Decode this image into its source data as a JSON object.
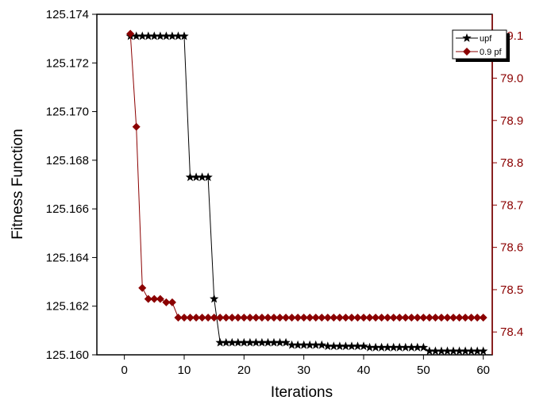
{
  "chart_data": {
    "type": "line",
    "x_label": "Iterations",
    "y_label": "Fitness Function",
    "x": [
      1,
      2,
      3,
      4,
      5,
      6,
      7,
      8,
      9,
      10,
      11,
      12,
      13,
      14,
      15,
      16,
      17,
      18,
      19,
      20,
      21,
      22,
      23,
      24,
      25,
      26,
      27,
      28,
      29,
      30,
      31,
      32,
      33,
      34,
      35,
      36,
      37,
      38,
      39,
      40,
      41,
      42,
      43,
      44,
      45,
      46,
      47,
      48,
      49,
      50,
      51,
      52,
      53,
      54,
      55,
      56,
      57,
      58,
      59,
      60
    ],
    "xlim": [
      -4.6,
      61.5
    ],
    "xticks": [
      0,
      10,
      20,
      30,
      40,
      50,
      60
    ],
    "ylim": [
      125.16,
      125.174
    ],
    "yticks": [
      {
        "value": 125.16,
        "label": "125.160"
      },
      125.162,
      125.164,
      125.166,
      125.168,
      {
        "value": 125.17,
        "label": "125.170"
      },
      125.172,
      125.174
    ],
    "y2lim": [
      78.346,
      79.151
    ],
    "y2ticks": [
      78.4,
      78.5,
      78.6,
      78.7,
      78.8,
      78.9,
      {
        "value": 79,
        "label": "79.0"
      },
      79.1
    ],
    "y2_color": "#8b0000",
    "legend": "top-right",
    "series": [
      {
        "name": "upf",
        "color": "#000000",
        "marker": "star",
        "axis": "y",
        "values": [
          125.1731,
          125.1731,
          125.1731,
          125.1731,
          125.1731,
          125.1731,
          125.1731,
          125.1731,
          125.1731,
          125.1731,
          125.1673,
          125.1673,
          125.1673,
          125.1673,
          125.1623,
          125.1605,
          125.1605,
          125.1605,
          125.1605,
          125.1605,
          125.1605,
          125.1605,
          125.1605,
          125.1605,
          125.1605,
          125.1605,
          125.1605,
          125.1604,
          125.1604,
          125.1604,
          125.1604,
          125.1604,
          125.1604,
          125.16035,
          125.16035,
          125.16035,
          125.16035,
          125.16035,
          125.16035,
          125.16035,
          125.1603,
          125.1603,
          125.1603,
          125.1603,
          125.1603,
          125.1603,
          125.1603,
          125.1603,
          125.1603,
          125.1603,
          125.16015,
          125.16015,
          125.16015,
          125.16015,
          125.16015,
          125.16015,
          125.16015,
          125.16015,
          125.16015,
          125.16015
        ]
      },
      {
        "name": "0.9 pf",
        "color": "#8b0000",
        "marker": "diamond",
        "axis": "y2",
        "values": [
          79.105,
          78.885,
          78.504,
          78.478,
          78.478,
          78.478,
          78.47,
          78.47,
          78.434,
          78.434,
          78.434,
          78.434,
          78.434,
          78.434,
          78.434,
          78.434,
          78.434,
          78.434,
          78.434,
          78.434,
          78.434,
          78.434,
          78.434,
          78.434,
          78.434,
          78.434,
          78.434,
          78.434,
          78.434,
          78.434,
          78.434,
          78.434,
          78.434,
          78.434,
          78.434,
          78.434,
          78.434,
          78.434,
          78.434,
          78.434,
          78.434,
          78.434,
          78.434,
          78.434,
          78.434,
          78.434,
          78.434,
          78.434,
          78.434,
          78.434,
          78.434,
          78.434,
          78.434,
          78.434,
          78.434,
          78.434,
          78.434,
          78.434,
          78.434,
          78.434
        ]
      }
    ]
  }
}
